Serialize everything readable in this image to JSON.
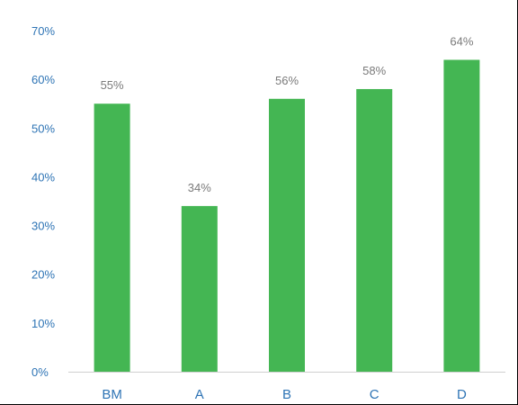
{
  "chart_data": {
    "type": "bar",
    "categories": [
      "BM",
      "A",
      "B",
      "C",
      "D"
    ],
    "values": [
      55,
      34,
      56,
      58,
      64
    ],
    "value_labels": [
      "55%",
      "34%",
      "56%",
      "58%",
      "64%"
    ],
    "title": "",
    "xlabel": "",
    "ylabel": "",
    "ylim": [
      0,
      70
    ],
    "yticks": [
      0,
      10,
      20,
      30,
      40,
      50,
      60,
      70
    ],
    "ytick_labels": [
      "0%",
      "10%",
      "20%",
      "30%",
      "40%",
      "50%",
      "60%",
      "70%"
    ],
    "grid": false,
    "legend": "none",
    "colors": {
      "bar": "#44b653",
      "axis_text": "#2e74b5",
      "data_label": "#7a7a7a",
      "axis_line": "#d0d0d0",
      "frame": "#000000"
    }
  }
}
